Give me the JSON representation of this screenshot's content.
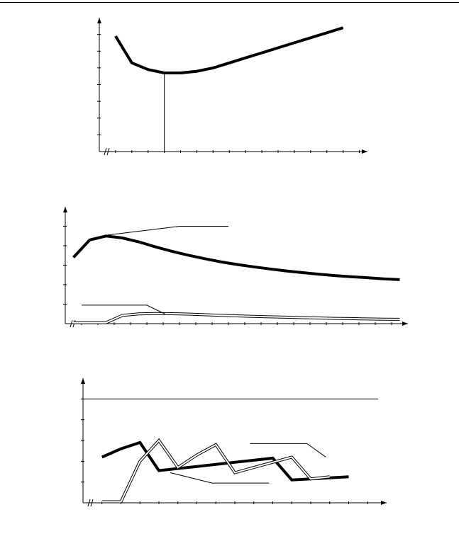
{
  "colors": {
    "ink": "#000000",
    "hollow_fill": "#ffffff"
  },
  "chart_data": [
    {
      "type": "line",
      "title": "",
      "xlabel": "",
      "ylabel": "",
      "grid": false,
      "axis_break_on_x": true,
      "xlim": [
        0,
        16.5
      ],
      "ylim": [
        0,
        8
      ],
      "x_ticks": [
        1,
        2,
        3,
        4,
        5,
        6,
        7,
        8,
        9,
        10,
        11,
        12,
        13,
        14,
        15,
        16
      ],
      "y_ticks": [
        1,
        2,
        3,
        4,
        5,
        6,
        7
      ],
      "reference_x": 4,
      "series": [
        {
          "style": "bold",
          "points": [
            [
              1,
              6.9
            ],
            [
              2,
              5.3
            ],
            [
              3,
              4.9
            ],
            [
              4,
              4.7
            ],
            [
              5,
              4.7
            ],
            [
              6,
              4.8
            ],
            [
              7,
              5.0
            ],
            [
              8,
              5.3
            ],
            [
              9,
              5.6
            ],
            [
              10,
              5.9
            ],
            [
              11,
              6.2
            ],
            [
              12,
              6.5
            ],
            [
              13,
              6.8
            ],
            [
              14,
              7.1
            ],
            [
              15,
              7.4
            ]
          ]
        }
      ]
    },
    {
      "type": "line",
      "title": "",
      "xlabel": "",
      "ylabel": "",
      "grid": false,
      "axis_break_on_x": true,
      "xlim": [
        0,
        21
      ],
      "ylim": [
        0,
        6
      ],
      "x_ticks": [
        1,
        2,
        3,
        4,
        5,
        6,
        7,
        8,
        9,
        10,
        11,
        12,
        13,
        14,
        15,
        16,
        17,
        18,
        19,
        20
      ],
      "y_ticks": [
        1,
        2,
        3,
        4,
        5
      ],
      "series": [
        {
          "style": "bold",
          "points": [
            [
              0.5,
              3.4
            ],
            [
              1.5,
              4.3
            ],
            [
              2.5,
              4.5
            ],
            [
              3.5,
              4.4
            ],
            [
              4.5,
              4.2
            ],
            [
              5.5,
              3.95
            ],
            [
              6.5,
              3.72
            ],
            [
              7.5,
              3.52
            ],
            [
              8.5,
              3.34
            ],
            [
              9.5,
              3.18
            ],
            [
              10.5,
              3.04
            ],
            [
              11.5,
              2.92
            ],
            [
              12.5,
              2.81
            ],
            [
              13.5,
              2.71
            ],
            [
              14.5,
              2.62
            ],
            [
              15.5,
              2.54
            ],
            [
              16.5,
              2.47
            ],
            [
              17.5,
              2.41
            ],
            [
              18.5,
              2.36
            ],
            [
              19.5,
              2.3
            ],
            [
              20.5,
              2.26
            ]
          ]
        },
        {
          "style": "hollow",
          "points": [
            [
              0.5,
              0.05
            ],
            [
              1.5,
              0.05
            ],
            [
              2.5,
              0.05
            ],
            [
              3.5,
              0.42
            ],
            [
              4.5,
              0.5
            ],
            [
              5.5,
              0.52
            ],
            [
              6.5,
              0.51
            ],
            [
              7.5,
              0.49
            ],
            [
              8.5,
              0.46
            ],
            [
              9.5,
              0.43
            ],
            [
              10.5,
              0.4
            ],
            [
              11.5,
              0.37
            ],
            [
              12.5,
              0.35
            ],
            [
              13.5,
              0.33
            ],
            [
              14.5,
              0.31
            ],
            [
              15.5,
              0.29
            ],
            [
              16.5,
              0.27
            ],
            [
              17.5,
              0.26
            ],
            [
              18.5,
              0.24
            ],
            [
              19.5,
              0.23
            ],
            [
              20.5,
              0.22
            ]
          ]
        }
      ],
      "leaders": [
        {
          "from": [
            2.6,
            4.55
          ],
          "to": [
            7.0,
            5.0
          ],
          "end": [
            10.0,
            5.0
          ]
        },
        {
          "from": [
            6.1,
            0.5
          ],
          "to": [
            5.0,
            0.95
          ],
          "end": [
            1.0,
            0.95
          ]
        }
      ]
    },
    {
      "type": "line",
      "title": "",
      "xlabel": "",
      "ylabel": "",
      "grid": false,
      "axis_break_on_x": true,
      "xlim": [
        0,
        16
      ],
      "ylim": [
        0,
        6
      ],
      "x_ticks": [
        1,
        2,
        3,
        4,
        5,
        6,
        7,
        8,
        9,
        10,
        11,
        12,
        13,
        14,
        15
      ],
      "y_ticks": [
        1,
        2,
        3,
        4,
        5
      ],
      "reference_y": 5.0,
      "series": [
        {
          "style": "bold",
          "points": [
            [
              1,
              2.2
            ],
            [
              2,
              2.6
            ],
            [
              3,
              2.9
            ],
            [
              4,
              1.55
            ],
            [
              5,
              1.65
            ],
            [
              6,
              1.75
            ],
            [
              7,
              1.85
            ],
            [
              8,
              1.95
            ],
            [
              9,
              2.05
            ],
            [
              10,
              2.15
            ],
            [
              11,
              1.1
            ],
            [
              12,
              1.15
            ],
            [
              13,
              1.2
            ],
            [
              14,
              1.25
            ]
          ]
        },
        {
          "style": "hollow",
          "points": [
            [
              1,
              0.05
            ],
            [
              2,
              0.05
            ],
            [
              3,
              2.0
            ],
            [
              4,
              3.0
            ],
            [
              5,
              1.7
            ],
            [
              6,
              2.3
            ],
            [
              7,
              2.8
            ],
            [
              8,
              1.45
            ],
            [
              9,
              1.7
            ],
            [
              10,
              1.95
            ],
            [
              11,
              2.2
            ],
            [
              12,
              1.15
            ],
            [
              13,
              1.25
            ]
          ]
        }
      ],
      "leaders": [
        {
          "from": [
            4.6,
            1.45
          ],
          "to": [
            6.8,
            0.95
          ],
          "end": [
            9.8,
            0.95
          ]
        },
        {
          "from": [
            12.8,
            2.2
          ],
          "to": [
            11.8,
            2.85
          ],
          "end": [
            8.8,
            2.85
          ]
        }
      ]
    }
  ]
}
